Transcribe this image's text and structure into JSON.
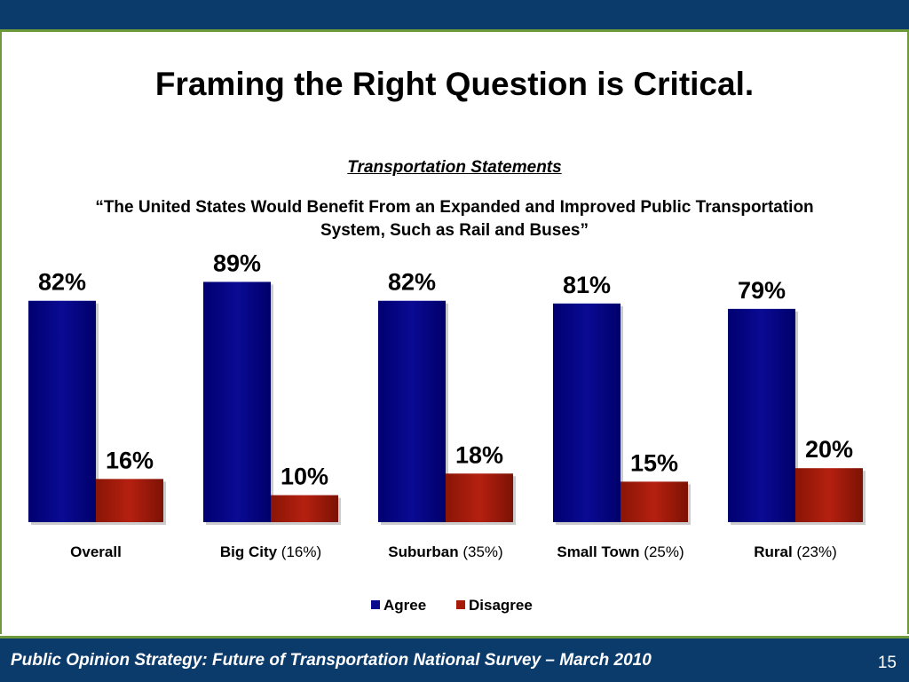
{
  "slide": {
    "title": "Framing the Right Question is Critical.",
    "subtitle": "Transportation Statements",
    "question": "“The United States Would Benefit From an Expanded and Improved Public Transportation System, Such as Rail and Buses”",
    "footer": "Public Opinion Strategy: Future of Transportation National Survey – March 2010",
    "page_number": "15",
    "colors": {
      "header": "#0b3b6b",
      "accent": "#6f9a3c"
    }
  },
  "chart_data": {
    "type": "bar",
    "categories": [
      "Overall",
      "Big City",
      "Suburban",
      "Small Town",
      "Rural"
    ],
    "category_notes": [
      "",
      "(16%)",
      "(35%)",
      "(25%)",
      "(23%)"
    ],
    "series": [
      {
        "name": "Agree",
        "values": [
          82,
          89,
          82,
          81,
          79
        ],
        "labels": [
          "82%",
          "89%",
          "82%",
          "81%",
          "79%"
        ],
        "color": "#0a0a8c"
      },
      {
        "name": "Disagree",
        "values": [
          16,
          10,
          18,
          15,
          20
        ],
        "labels": [
          "16%",
          "10%",
          "18%",
          "15%",
          "20%"
        ],
        "color": "#a81a08"
      }
    ],
    "ylim": [
      0,
      100
    ],
    "grid": false,
    "legend": "bottom-center"
  }
}
